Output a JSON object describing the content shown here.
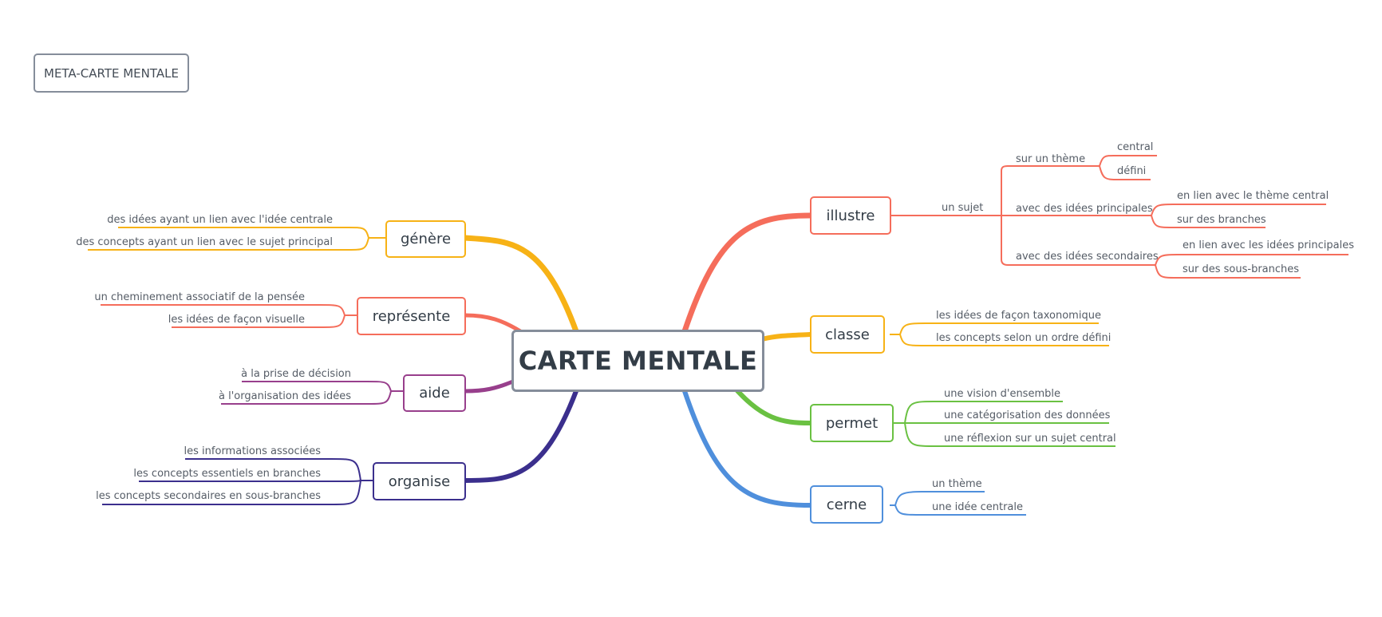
{
  "meta_title": "META-CARTE MENTALE",
  "central": "CARTE MENTALE",
  "colors": {
    "genere": "#f7b216",
    "represente": "#f56d5b",
    "aide": "#983f8c",
    "organise": "#3b2f8d",
    "illustre": "#f56d5b",
    "classe": "#f7b216",
    "permet": "#6ac142",
    "cerne": "#4f8fdc",
    "node_border": "#858d9a"
  },
  "left_branches": {
    "genere": {
      "label": "génère",
      "children": [
        "des idées ayant un lien avec l'idée centrale",
        "des concepts ayant un lien avec le sujet principal"
      ]
    },
    "represente": {
      "label": "représente",
      "children": [
        "un cheminement associatif de la pensée",
        "les idées de façon visuelle"
      ]
    },
    "aide": {
      "label": "aide",
      "children": [
        "à la prise de décision",
        "à l'organisation des idées"
      ]
    },
    "organise": {
      "label": "organise",
      "children": [
        "les informations associées",
        "les concepts essentiels en branches",
        "les concepts secondaires en sous-branches"
      ]
    }
  },
  "right_branches": {
    "illustre": {
      "label": "illustre",
      "subject": "un sujet",
      "sub": [
        {
          "label": "sur un thème",
          "children": [
            "central",
            "défini"
          ]
        },
        {
          "label": "avec des idées principales",
          "children": [
            "en lien avec le thème central",
            "sur des branches"
          ]
        },
        {
          "label": "avec des idées secondaires",
          "children": [
            "en lien avec les idées principales",
            "sur des sous-branches"
          ]
        }
      ]
    },
    "classe": {
      "label": "classe",
      "children": [
        "les idées de façon taxonomique",
        "les concepts selon un ordre défini"
      ]
    },
    "permet": {
      "label": "permet",
      "children": [
        "une vision d'ensemble",
        "une catégorisation des données",
        "une réflexion sur un sujet central"
      ]
    },
    "cerne": {
      "label": "cerne",
      "children": [
        "un thème",
        "une idée centrale"
      ]
    }
  }
}
